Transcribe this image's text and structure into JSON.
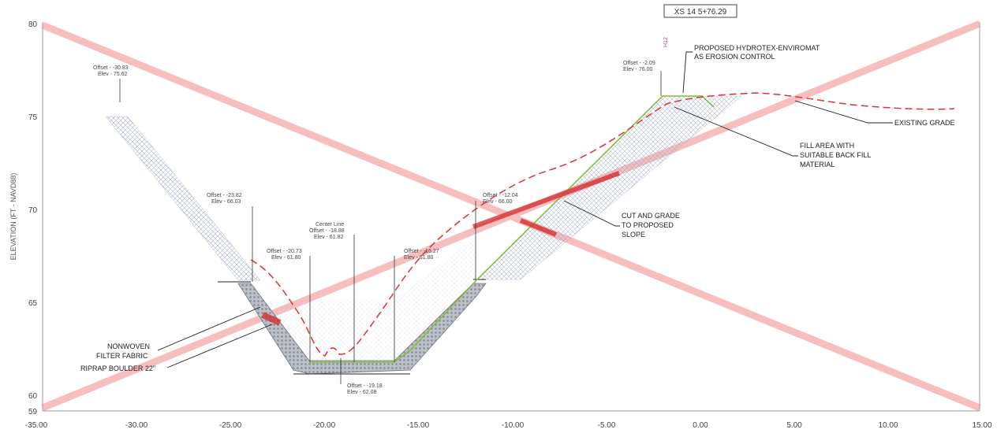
{
  "title": "XS 14 5+76.29",
  "y_axis_label": "ELEVATION (FT - NAVD88)",
  "x_ticks": [
    "-35.00",
    "-30.00",
    "-25.00",
    "-20.00",
    "-15.00",
    "-10.00",
    "-5.00",
    "0.00",
    "5.00",
    "10.00",
    "15.00"
  ],
  "y_ticks": [
    "59",
    "60",
    "65",
    "70",
    "75",
    "80"
  ],
  "labels": {
    "erosion_control": [
      "PROPOSED HYDROTEX-ENVIROMAT",
      "AS EROSION CONTROL"
    ],
    "existing_grade": "EXISTING GRADE",
    "fill_area": [
      "FILL AREA WITH",
      "SUITABLE BACK FILL",
      "MATERIAL"
    ],
    "cut_grade": [
      "CUT AND GRADE",
      "TO PROPOSED",
      "SLOPE"
    ],
    "filter_fabric": [
      "NONWOVEN",
      "FILTER FABRIC"
    ],
    "riprap": "RIPRAP BOULDER 22\"",
    "vertical_tag": "H12"
  },
  "points": {
    "p1": [
      "Offset - -30.83",
      "Elev - 75.62"
    ],
    "p2": [
      "Offset - -23.82",
      "Elev - 66.03"
    ],
    "p3": [
      "Offset - -20.73",
      "Elev - 61.80"
    ],
    "p4": [
      "Center Line",
      "Offset - -18.88",
      "Elev - 61.82"
    ],
    "p5": [
      "Offset - -16.27",
      "Elev - 61.80"
    ],
    "p6": [
      "Offset - -12.04",
      "Elev - 66.00"
    ],
    "p7": [
      "Offset - -2.09",
      "Elev - 76.00"
    ],
    "p8": [
      "Offset - -19.18",
      "Elev - 62.08"
    ]
  },
  "colors": {
    "red_line": "#e03030",
    "green_line": "#7fbf3a",
    "riprap": "#b8bcc4",
    "hatch": "#9aa4c4",
    "x_mark": "#f08a8a"
  }
}
